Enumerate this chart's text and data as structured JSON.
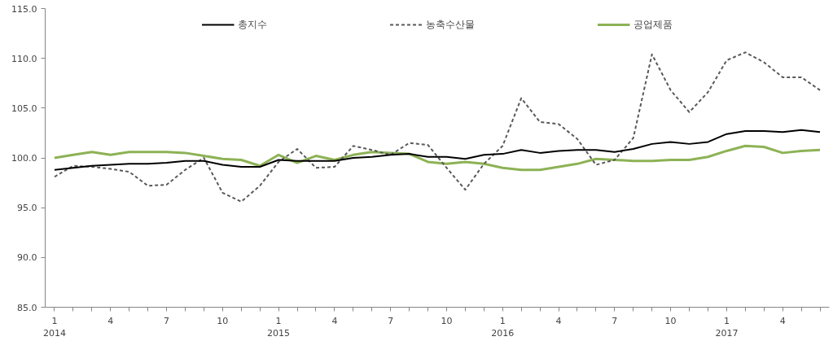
{
  "chart_data": {
    "type": "line",
    "categories": [
      "1\n2014",
      null,
      null,
      "4",
      null,
      null,
      "7",
      null,
      null,
      "10",
      null,
      null,
      "1\n2015",
      null,
      null,
      "4",
      null,
      null,
      "7",
      null,
      null,
      "10",
      null,
      null,
      "1\n2016",
      null,
      null,
      "4",
      null,
      null,
      "7",
      null,
      null,
      "10",
      null,
      null,
      "1\n2017",
      null,
      null,
      "4",
      null,
      null
    ],
    "series": [
      {
        "name": "총지수",
        "color": "#000000",
        "line_style": "solid",
        "values": [
          98.8,
          99.0,
          99.2,
          99.3,
          99.4,
          99.4,
          99.5,
          99.7,
          99.7,
          99.3,
          99.1,
          99.1,
          99.8,
          99.7,
          99.7,
          99.7,
          100.0,
          100.1,
          100.3,
          100.4,
          100.1,
          100.1,
          99.9,
          100.3,
          100.4,
          100.8,
          100.5,
          100.7,
          100.8,
          100.8,
          100.6,
          100.9,
          101.4,
          101.6,
          101.4,
          101.6,
          102.4,
          102.7,
          102.7,
          102.6,
          102.8,
          102.6
        ]
      },
      {
        "name": "농축수산물",
        "color": "#595959",
        "line_style": "dashed",
        "values": [
          98.1,
          99.2,
          99.1,
          98.9,
          98.6,
          97.2,
          97.3,
          98.8,
          100.0,
          96.5,
          95.6,
          97.2,
          99.6,
          100.9,
          99.0,
          99.1,
          101.2,
          100.8,
          100.3,
          101.5,
          101.3,
          99.0,
          96.8,
          99.4,
          101.2,
          106.0,
          103.6,
          103.4,
          101.9,
          99.3,
          99.8,
          102.0,
          110.4,
          106.8,
          104.6,
          106.6,
          109.8,
          110.6,
          109.6,
          108.1,
          108.1,
          106.8
        ]
      },
      {
        "name": "공업제품",
        "color": "#8db255",
        "line_style": "solid",
        "values": [
          100.0,
          100.3,
          100.6,
          100.3,
          100.6,
          100.6,
          100.6,
          100.5,
          100.2,
          99.9,
          99.8,
          99.2,
          100.3,
          99.5,
          100.2,
          99.8,
          100.3,
          100.6,
          100.5,
          100.4,
          99.6,
          99.4,
          99.6,
          99.4,
          99.0,
          98.8,
          98.8,
          99.1,
          99.4,
          99.9,
          99.8,
          99.7,
          99.7,
          99.8,
          99.8,
          100.1,
          100.7,
          101.2,
          101.1,
          100.5,
          100.7,
          100.8
        ]
      }
    ],
    "ylim": [
      85,
      115
    ],
    "yticks": [
      {
        "value": 85,
        "label": "85.0"
      },
      {
        "value": 90,
        "label": "90.0"
      },
      {
        "value": 95,
        "label": "95.0"
      },
      {
        "value": 100,
        "label": "100.0"
      },
      {
        "value": 105,
        "label": "105.0"
      },
      {
        "value": 110,
        "label": "110.0"
      },
      {
        "value": 115,
        "label": "115.0"
      }
    ],
    "grid": false,
    "legend": "top",
    "marker": "none"
  }
}
